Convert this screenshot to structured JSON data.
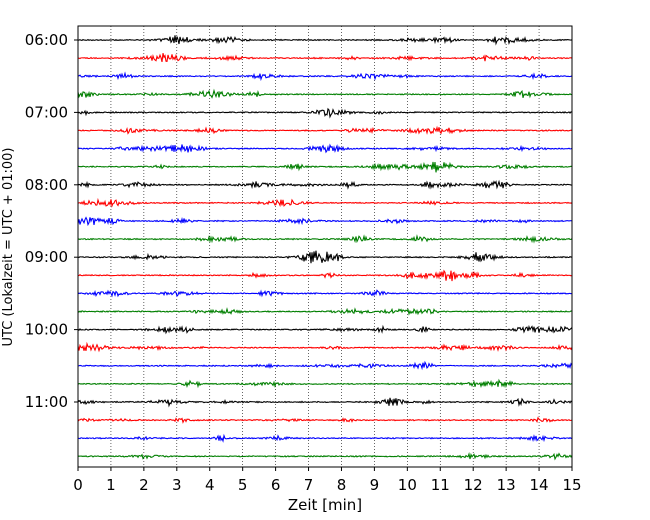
{
  "chart_data": {
    "type": "line",
    "title": "",
    "xlabel": "Zeit  [min]",
    "ylabel": "UTC (Lokalzeit = UTC + 01:00)",
    "xlim": [
      0,
      15
    ],
    "x_ticks": [
      0,
      1,
      2,
      3,
      4,
      5,
      6,
      7,
      8,
      9,
      10,
      11,
      12,
      13,
      14,
      15
    ],
    "y_tick_labels": [
      "06:00",
      "07:00",
      "08:00",
      "09:00",
      "10:00",
      "11:00"
    ],
    "traces_per_hour": 4,
    "trace_count": 24,
    "trace_colors": [
      "#000000",
      "#ff0000",
      "#0000ff",
      "#007f00"
    ],
    "grid": "vertical dotted at each minute",
    "legend": "none"
  }
}
